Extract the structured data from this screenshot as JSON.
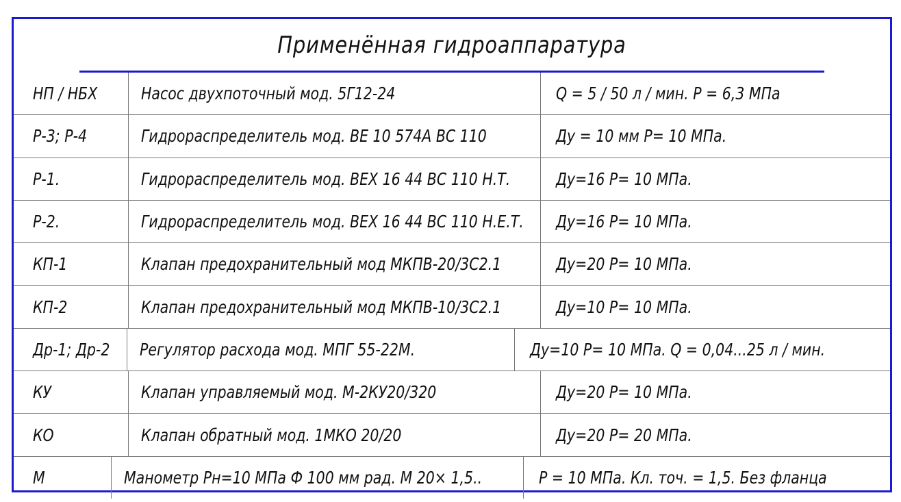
{
  "title": "Применённая гидроаппаратура",
  "rows": [
    [
      "НП / НБХ",
      "Насос двухпоточный мод. 5Г12-24",
      "Q = 5 / 50 л / мин.   P = 6,3 МПа"
    ],
    [
      "Р-3;  Р-4",
      "Гидрораспределитель мод. ВЕ 10 574А ВС 110",
      "Ду = 10 мм   Р= 10 МПа."
    ],
    [
      "Р-1.",
      "Гидрораспределитель мод. ВЕХ 16 44 ВС 110 Н.Т.",
      "Ду=16   Р= 10 МПа."
    ],
    [
      "Р-2.",
      "Гидрораспределитель мод. ВЕХ 16 44 ВС 110 Н.Е.Т.",
      "Ду=16   Р= 10 МПа."
    ],
    [
      "КП-1",
      "Клапан предохранительный мод МКПВ-20/3С2.1",
      "Ду=20   Р= 10 МПа."
    ],
    [
      "КП-2",
      "Клапан предохранительный мод МКПВ-10/3С2.1",
      "Ду=10   Р= 10 МПа."
    ],
    [
      "Др-1;  Др-2",
      "Регулятор расхода  мод. МПГ 55-22М.",
      "Ду=10   Р= 10 МПа.   Q = 0,04...25 л / мин."
    ],
    [
      "КУ",
      "Клапан управляемый мод. М-2КУ20/320",
      "Ду=20   Р= 10 МПа."
    ],
    [
      "КО",
      "Клапан обратный  мод. 1МКО 20/20",
      "Ду=20   Р= 20 МПа."
    ],
    [
      "М",
      "Манометр Рн=10 МПа Ф 100 мм рад. М 20× 1,5..",
      "Р = 10 МПа.  Кл. точ. = 1,5.  Без фланца"
    ]
  ],
  "colors": {
    "border": "#1a1ad0",
    "grid": "#777777",
    "text": "#111111"
  }
}
